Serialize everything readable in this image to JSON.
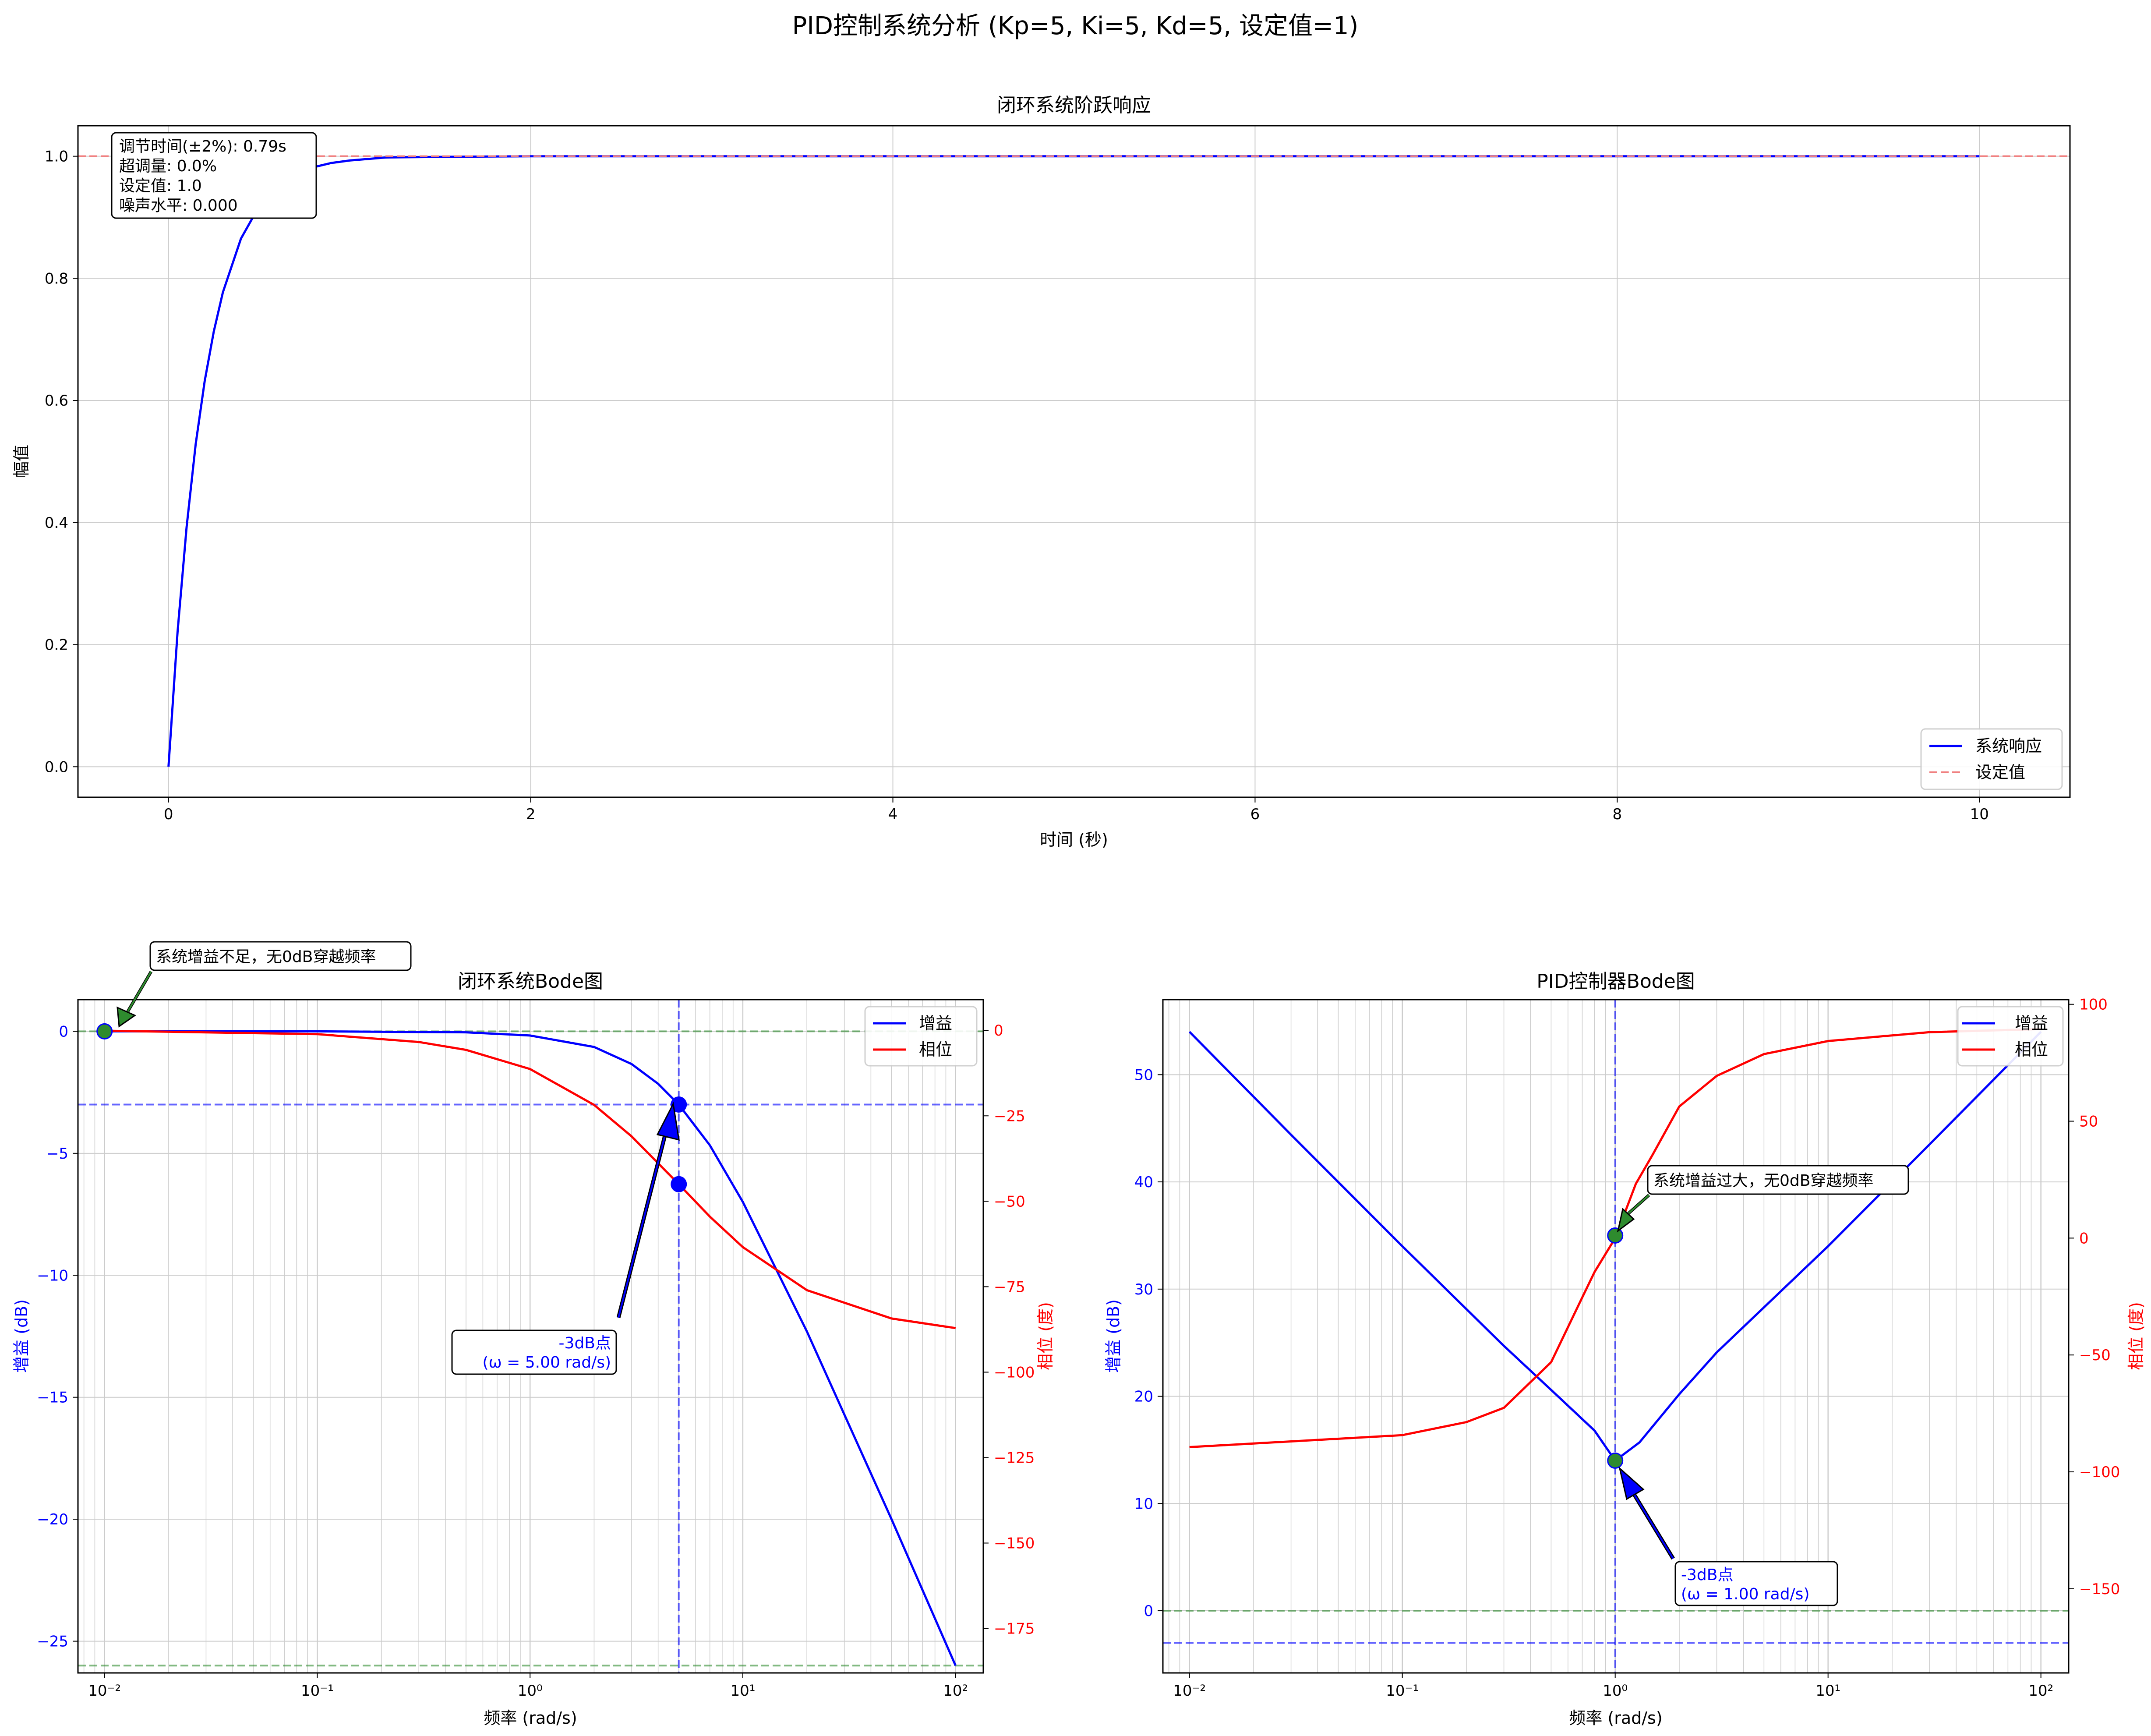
{
  "suptitle": "PID控制系统分析 (Kp=5, Ki=5, Kd=5, 设定值=1)",
  "colors": {
    "gain": "#0000ff",
    "phase": "#ff0000",
    "setpoint": "#f08080",
    "green": "#2e8b2e",
    "grid": "#cccccc"
  },
  "chart_data": [
    {
      "type": "line",
      "title": "闭环系统阶跃响应",
      "xlabel": "时间 (秒)",
      "ylabel": "幅值",
      "xlim": [
        -0.5,
        10.5
      ],
      "ylim": [
        -0.05,
        1.05
      ],
      "xticks": [
        0,
        2,
        4,
        6,
        8,
        10
      ],
      "yticks": [
        0.0,
        0.2,
        0.4,
        0.6,
        0.8,
        1.0
      ],
      "grid": true,
      "legend_position": "lower-right",
      "series": [
        {
          "name": "系统响应",
          "color": "#0000ff",
          "style": "solid",
          "x": [
            0,
            0.05,
            0.1,
            0.15,
            0.2,
            0.25,
            0.3,
            0.4,
            0.5,
            0.6,
            0.7,
            0.8,
            0.9,
            1.0,
            1.2,
            1.5,
            2.0,
            3,
            4,
            5,
            6,
            7,
            8,
            9,
            10
          ],
          "y": [
            0,
            0.221,
            0.393,
            0.528,
            0.632,
            0.713,
            0.777,
            0.865,
            0.918,
            0.95,
            0.97,
            0.982,
            0.989,
            0.993,
            0.998,
            0.999,
            1.0,
            1.0,
            1.0,
            1.0,
            1.0,
            1.0,
            1.0,
            1.0,
            1.0
          ]
        },
        {
          "name": "设定值",
          "color": "#f08080",
          "style": "dashed",
          "y_const": 1.0
        }
      ],
      "info_box": [
        "调节时间(±2%): 0.79s",
        "超调量: 0.0%",
        "设定值: 1.0",
        "噪声水平: 0.000"
      ]
    },
    {
      "type": "line",
      "title": "闭环系统Bode图",
      "xlabel": "频率 (rad/s)",
      "ylabel": "增益 (dB)",
      "ylabel_right": "相位 (度)",
      "xscale": "log",
      "xlim": [
        0.0075,
        135
      ],
      "ylim": [
        -26.3,
        1.3
      ],
      "ylim_right": [
        -188,
        9
      ],
      "yticks": [
        0,
        -5,
        -10,
        -15,
        -20,
        -25
      ],
      "yticks_right": [
        0,
        -25,
        -50,
        -75,
        -100,
        -125,
        -150,
        -175
      ],
      "xtick_labels": [
        "10⁻²",
        "10⁻¹",
        "10⁰",
        "10¹",
        "10²"
      ],
      "xtick_values": [
        0.01,
        0.1,
        1,
        10,
        100
      ],
      "legend_position": "upper-right",
      "series": [
        {
          "name": "增益",
          "color": "#0000ff",
          "axis": "left",
          "x": [
            0.01,
            0.1,
            0.5,
            1,
            2,
            3,
            4,
            5,
            7,
            10,
            20,
            50,
            100
          ],
          "y": [
            0.0,
            0.0,
            -0.04,
            -0.17,
            -0.64,
            -1.34,
            -2.15,
            -3.0,
            -4.67,
            -6.99,
            -12.3,
            -20.0,
            -26.0
          ]
        },
        {
          "name": "相位",
          "color": "#ff0000",
          "axis": "right",
          "x": [
            0.01,
            0.1,
            0.3,
            0.5,
            1,
            2,
            3,
            5,
            7,
            10,
            20,
            50,
            100
          ],
          "y": [
            -0.1,
            -1.1,
            -3.4,
            -5.7,
            -11.3,
            -21.8,
            -31.0,
            -45.0,
            -54.5,
            -63.4,
            -76.0,
            -84.3,
            -87.1
          ]
        }
      ],
      "hlines": [
        {
          "y": 0,
          "color": "#2e8b2e"
        },
        {
          "y": -3,
          "color": "#0000ff"
        },
        {
          "y": -26,
          "color": "#2e8b2e"
        }
      ],
      "vline": 5,
      "points": [
        {
          "x": 5,
          "y": -3,
          "axis": "left",
          "color": "#0000ff"
        },
        {
          "x": 5,
          "y": -45,
          "axis": "right",
          "color": "#0000ff"
        },
        {
          "x": 0.01,
          "y": 0,
          "axis": "left",
          "color": "#2e8b2e"
        }
      ],
      "annotations": [
        {
          "text": [
            "系统增益不足，无0dB穿越频率"
          ],
          "target_x": 0.01,
          "target_y": 0,
          "color": "#000"
        },
        {
          "text": [
            "-3dB点",
            "(ω = 5.00 rad/s)"
          ],
          "target_x": 5,
          "target_y": -3,
          "color": "#0000ff"
        }
      ]
    },
    {
      "type": "line",
      "title": "PID控制器Bode图",
      "xlabel": "频率 (rad/s)",
      "ylabel": "增益 (dB)",
      "ylabel_right": "相位 (度)",
      "xscale": "log",
      "xlim": [
        0.0075,
        135
      ],
      "ylim": [
        -5.8,
        57
      ],
      "ylim_right": [
        -186,
        102
      ],
      "yticks": [
        0,
        10,
        20,
        30,
        40,
        50
      ],
      "yticks_right": [
        100,
        50,
        0,
        -50,
        -100,
        -150
      ],
      "xtick_labels": [
        "10⁻²",
        "10⁻¹",
        "10⁰",
        "10¹",
        "10²"
      ],
      "xtick_values": [
        0.01,
        0.1,
        1,
        10,
        100
      ],
      "legend_position": "upper-right",
      "series": [
        {
          "name": "增益",
          "color": "#0000ff",
          "axis": "left",
          "x": [
            0.01,
            0.03,
            0.1,
            0.3,
            0.5,
            0.8,
            1,
            1.3,
            2,
            3,
            5,
            10,
            30,
            100
          ],
          "y": [
            54.0,
            44.4,
            34.0,
            24.7,
            20.6,
            16.8,
            14.0,
            15.7,
            20.2,
            24.1,
            28.3,
            34.0,
            43.5,
            54.0
          ]
        },
        {
          "name": "相位",
          "color": "#ff0000",
          "axis": "right",
          "x": [
            0.01,
            0.1,
            0.2,
            0.3,
            0.5,
            0.7,
            0.8,
            1,
            1.25,
            1.5,
            2,
            3,
            5,
            10,
            30,
            100
          ],
          "y": [
            -89.4,
            -84.3,
            -78.7,
            -72.6,
            -53.1,
            -25.4,
            -14.5,
            0,
            23.2,
            35.7,
            56.3,
            69.4,
            78.7,
            84.3,
            88.1,
            89.4
          ]
        }
      ],
      "hlines": [
        {
          "y": 0,
          "color": "#2e8b2e"
        },
        {
          "y": -3,
          "color": "#0000ff"
        }
      ],
      "vline": 1,
      "points": [
        {
          "x": 1,
          "y": 14,
          "axis": "left",
          "color": "#2e8b2e"
        },
        {
          "x": 1,
          "y": 35,
          "axis": "left",
          "color": "#2e8b2e"
        }
      ],
      "annotations": [
        {
          "text": [
            "系统增益过大，无0dB穿越频率"
          ],
          "target_x": 1,
          "target_y": 35,
          "color": "#000"
        },
        {
          "text": [
            "-3dB点",
            "(ω = 1.00 rad/s)"
          ],
          "target_x": 1,
          "target_y": 14,
          "color": "#0000ff"
        }
      ]
    }
  ]
}
